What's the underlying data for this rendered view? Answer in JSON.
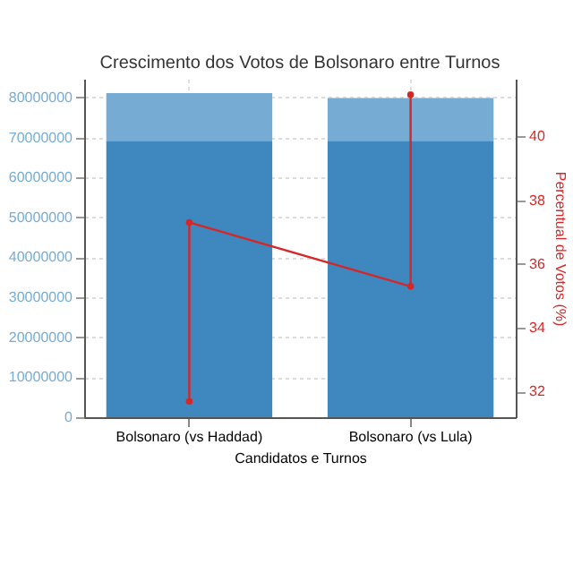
{
  "chart_data": {
    "type": "bar",
    "title": "Crescimento dos Votos de Bolsonaro entre Turnos",
    "xlabel": "Candidatos e Turnos",
    "y2label": "Percentual de Votos (%)",
    "categories": [
      "Bolsonaro (vs Haddad)",
      "Bolsonaro (vs Lula)"
    ],
    "series": [
      {
        "color": "#3f88bf",
        "values": [
          69200000,
          69200000
        ]
      },
      {
        "color": "#76acd3",
        "values": [
          11900000,
          10700000
        ]
      },
      {
        "type": "line",
        "axis": "y2",
        "color": "#d62728",
        "x": [
          "Bolsonaro (vs Haddad)",
          "Bolsonaro (vs Haddad)",
          "Bolsonaro (vs Lula)",
          "Bolsonaro (vs Lula)"
        ],
        "values": [
          31.7,
          37.3,
          35.3,
          41.3
        ]
      }
    ],
    "ylim": [
      0,
      84700000
    ],
    "yticks": [
      0,
      10000000,
      20000000,
      30000000,
      40000000,
      50000000,
      60000000,
      70000000,
      80000000
    ],
    "y2lim": [
      31.2,
      41.8
    ],
    "y2ticks": [
      32,
      34,
      36,
      38,
      40
    ],
    "stacked": true,
    "grid": true,
    "marker": "circle"
  }
}
